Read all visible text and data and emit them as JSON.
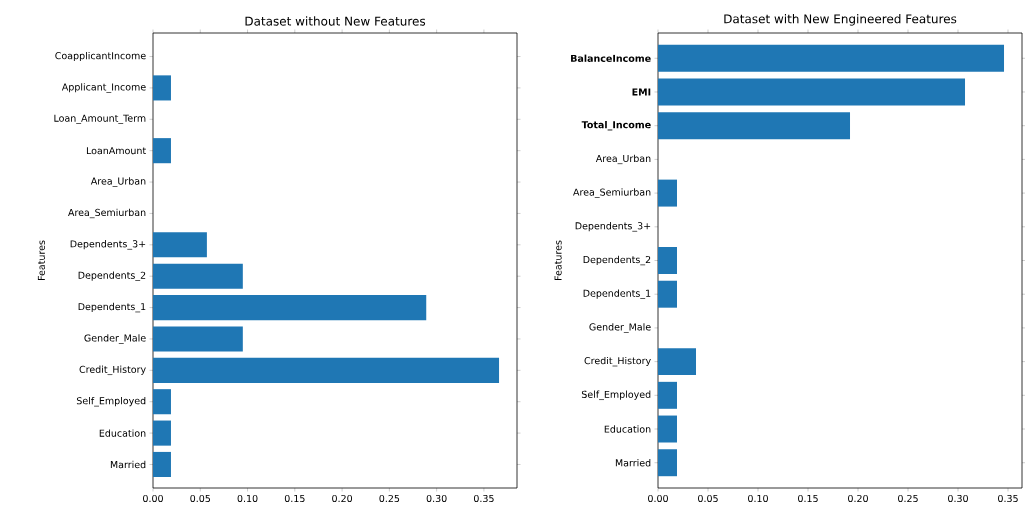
{
  "chart_data": [
    {
      "type": "bar",
      "orientation": "horizontal",
      "title": "Dataset without New Features",
      "ylabel": "Features",
      "categories": [
        "CoapplicantIncome",
        "Applicant_Income",
        "Loan_Amount_Term",
        "LoanAmount",
        "Area_Urban",
        "Area_Semiurban",
        "Dependents_3+",
        "Dependents_2",
        "Dependents_1",
        "Gender_Male",
        "Credit_History",
        "Self_Employed",
        "Education",
        "Married"
      ],
      "values": [
        0,
        0.019,
        0,
        0.019,
        0,
        0,
        0.057,
        0.095,
        0.289,
        0.095,
        0.366,
        0.019,
        0.019,
        0.019
      ],
      "color": "#1f77b4",
      "xlim": [
        0,
        0.385
      ],
      "xticks": [
        {
          "value": 0,
          "label": "0.00"
        },
        {
          "value": 0.05,
          "label": "0.05"
        },
        {
          "value": 0.1,
          "label": "0.10"
        },
        {
          "value": 0.15,
          "label": "0.15"
        },
        {
          "value": 0.2,
          "label": "0.20"
        },
        {
          "value": 0.25,
          "label": "0.25"
        },
        {
          "value": 0.3,
          "label": "0.30"
        },
        {
          "value": 0.35,
          "label": "0.35"
        }
      ]
    },
    {
      "type": "bar",
      "orientation": "horizontal",
      "title": "Dataset with New Engineered Features",
      "ylabel": "Features",
      "categories": [
        "**BalanceIncome**",
        "**EMI**",
        "**Total_Income**",
        "Area_Urban",
        "Area_Semiurban",
        "Dependents_3+",
        "Dependents_2",
        "Dependents_1",
        "Gender_Male",
        "Credit_History",
        "Self_Employed",
        "Education",
        "Married"
      ],
      "values": [
        0.346,
        0.307,
        0.192,
        0,
        0.019,
        0,
        0.019,
        0.019,
        0,
        0.038,
        0.019,
        0.019,
        0.019
      ],
      "color": "#1f77b4",
      "xlim": [
        0,
        0.364
      ],
      "xticks": [
        {
          "value": 0,
          "label": "0.00"
        },
        {
          "value": 0.05,
          "label": "0.05"
        },
        {
          "value": 0.1,
          "label": "0.10"
        },
        {
          "value": 0.15,
          "label": "0.15"
        },
        {
          "value": 0.2,
          "label": "0.20"
        },
        {
          "value": 0.25,
          "label": "0.25"
        },
        {
          "value": 0.3,
          "label": "0.30"
        },
        {
          "value": 0.35,
          "label": "0.35"
        }
      ]
    }
  ]
}
